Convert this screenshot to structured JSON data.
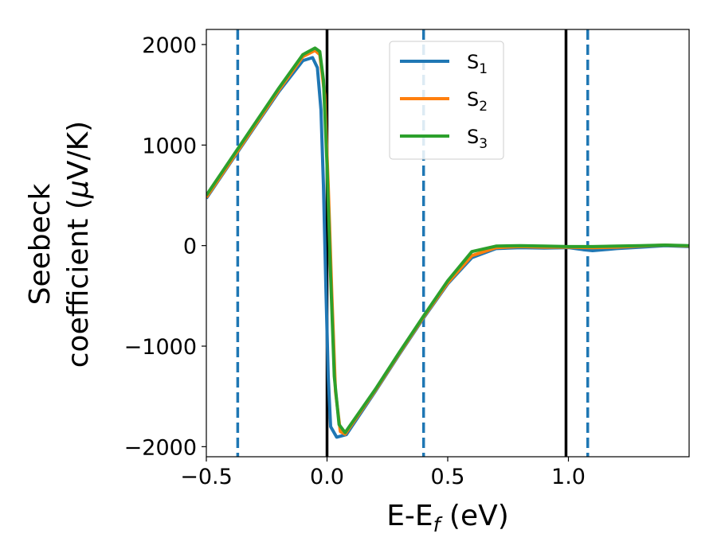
{
  "chart_data": {
    "type": "line",
    "xlabel": "E-E",
    "xlabel_sub": "f",
    "xlabel_unit": " (eV)",
    "ylabel_line1": "Seebeck",
    "ylabel_line2_text": "coefficient  (",
    "ylabel_mu": "μ",
    "ylabel_line2_unit": "V/K)",
    "xlim": [
      -0.5,
      1.5
    ],
    "ylim": [
      -2100,
      2150
    ],
    "xticks": [
      -0.5,
      0.0,
      0.5,
      1.0
    ],
    "xtick_labels": [
      "−0.5",
      "0.0",
      "0.5",
      "1.0"
    ],
    "yticks": [
      -2000,
      -1000,
      0,
      1000,
      2000
    ],
    "ytick_labels": [
      "−2000",
      "−1000",
      "0",
      "1000",
      "2000"
    ],
    "legend_position": "top-center",
    "vlines_solid": [
      0.0,
      0.99
    ],
    "vlines_dashed": [
      -0.37,
      0.4,
      1.08
    ],
    "vline_solid_color": "#000000",
    "vline_dashed_color": "#1f77b4",
    "series": [
      {
        "name": "S",
        "sub": "1",
        "color": "#1f77b4",
        "points": [
          [
            -0.5,
            470
          ],
          [
            -0.4,
            825
          ],
          [
            -0.3,
            1180
          ],
          [
            -0.2,
            1530
          ],
          [
            -0.1,
            1840
          ],
          [
            -0.06,
            1870
          ],
          [
            -0.04,
            1770
          ],
          [
            -0.025,
            1350
          ],
          [
            -0.015,
            600
          ],
          [
            -0.005,
            -400
          ],
          [
            0.005,
            -1300
          ],
          [
            0.015,
            -1800
          ],
          [
            0.04,
            -1905
          ],
          [
            0.08,
            -1880
          ],
          [
            0.2,
            -1450
          ],
          [
            0.3,
            -1080
          ],
          [
            0.4,
            -720
          ],
          [
            0.5,
            -380
          ],
          [
            0.6,
            -120
          ],
          [
            0.7,
            -30
          ],
          [
            0.8,
            -20
          ],
          [
            0.9,
            -25
          ],
          [
            1.0,
            -20
          ],
          [
            1.06,
            -40
          ],
          [
            1.1,
            -50
          ],
          [
            1.2,
            -30
          ],
          [
            1.3,
            -15
          ],
          [
            1.4,
            0
          ],
          [
            1.5,
            -10
          ]
        ]
      },
      {
        "name": "S",
        "sub": "2",
        "color": "#ff7f0e",
        "points": [
          [
            -0.5,
            480
          ],
          [
            -0.4,
            835
          ],
          [
            -0.3,
            1190
          ],
          [
            -0.2,
            1545
          ],
          [
            -0.1,
            1880
          ],
          [
            -0.05,
            1940
          ],
          [
            -0.03,
            1900
          ],
          [
            -0.01,
            1500
          ],
          [
            0.005,
            600
          ],
          [
            0.02,
            -500
          ],
          [
            0.035,
            -1450
          ],
          [
            0.055,
            -1850
          ],
          [
            0.075,
            -1875
          ],
          [
            0.2,
            -1440
          ],
          [
            0.3,
            -1070
          ],
          [
            0.4,
            -710
          ],
          [
            0.5,
            -370
          ],
          [
            0.6,
            -100
          ],
          [
            0.7,
            -20
          ],
          [
            0.8,
            -10
          ],
          [
            0.9,
            -15
          ],
          [
            1.0,
            -15
          ],
          [
            1.1,
            -20
          ],
          [
            1.2,
            -15
          ],
          [
            1.3,
            -5
          ],
          [
            1.4,
            5
          ],
          [
            1.5,
            -5
          ]
        ]
      },
      {
        "name": "S",
        "sub": "3",
        "color": "#2ca02c",
        "points": [
          [
            -0.5,
            500
          ],
          [
            -0.4,
            855
          ],
          [
            -0.3,
            1210
          ],
          [
            -0.2,
            1565
          ],
          [
            -0.1,
            1900
          ],
          [
            -0.05,
            1965
          ],
          [
            -0.03,
            1930
          ],
          [
            -0.015,
            1650
          ],
          [
            0.0,
            800
          ],
          [
            0.015,
            -300
          ],
          [
            0.03,
            -1300
          ],
          [
            0.05,
            -1780
          ],
          [
            0.075,
            -1860
          ],
          [
            0.2,
            -1430
          ],
          [
            0.3,
            -1060
          ],
          [
            0.4,
            -700
          ],
          [
            0.5,
            -350
          ],
          [
            0.6,
            -60
          ],
          [
            0.7,
            -5
          ],
          [
            0.8,
            0
          ],
          [
            0.9,
            -5
          ],
          [
            1.0,
            -10
          ],
          [
            1.1,
            -10
          ],
          [
            1.2,
            -5
          ],
          [
            1.3,
            0
          ],
          [
            1.4,
            5
          ],
          [
            1.5,
            0
          ]
        ]
      }
    ]
  }
}
